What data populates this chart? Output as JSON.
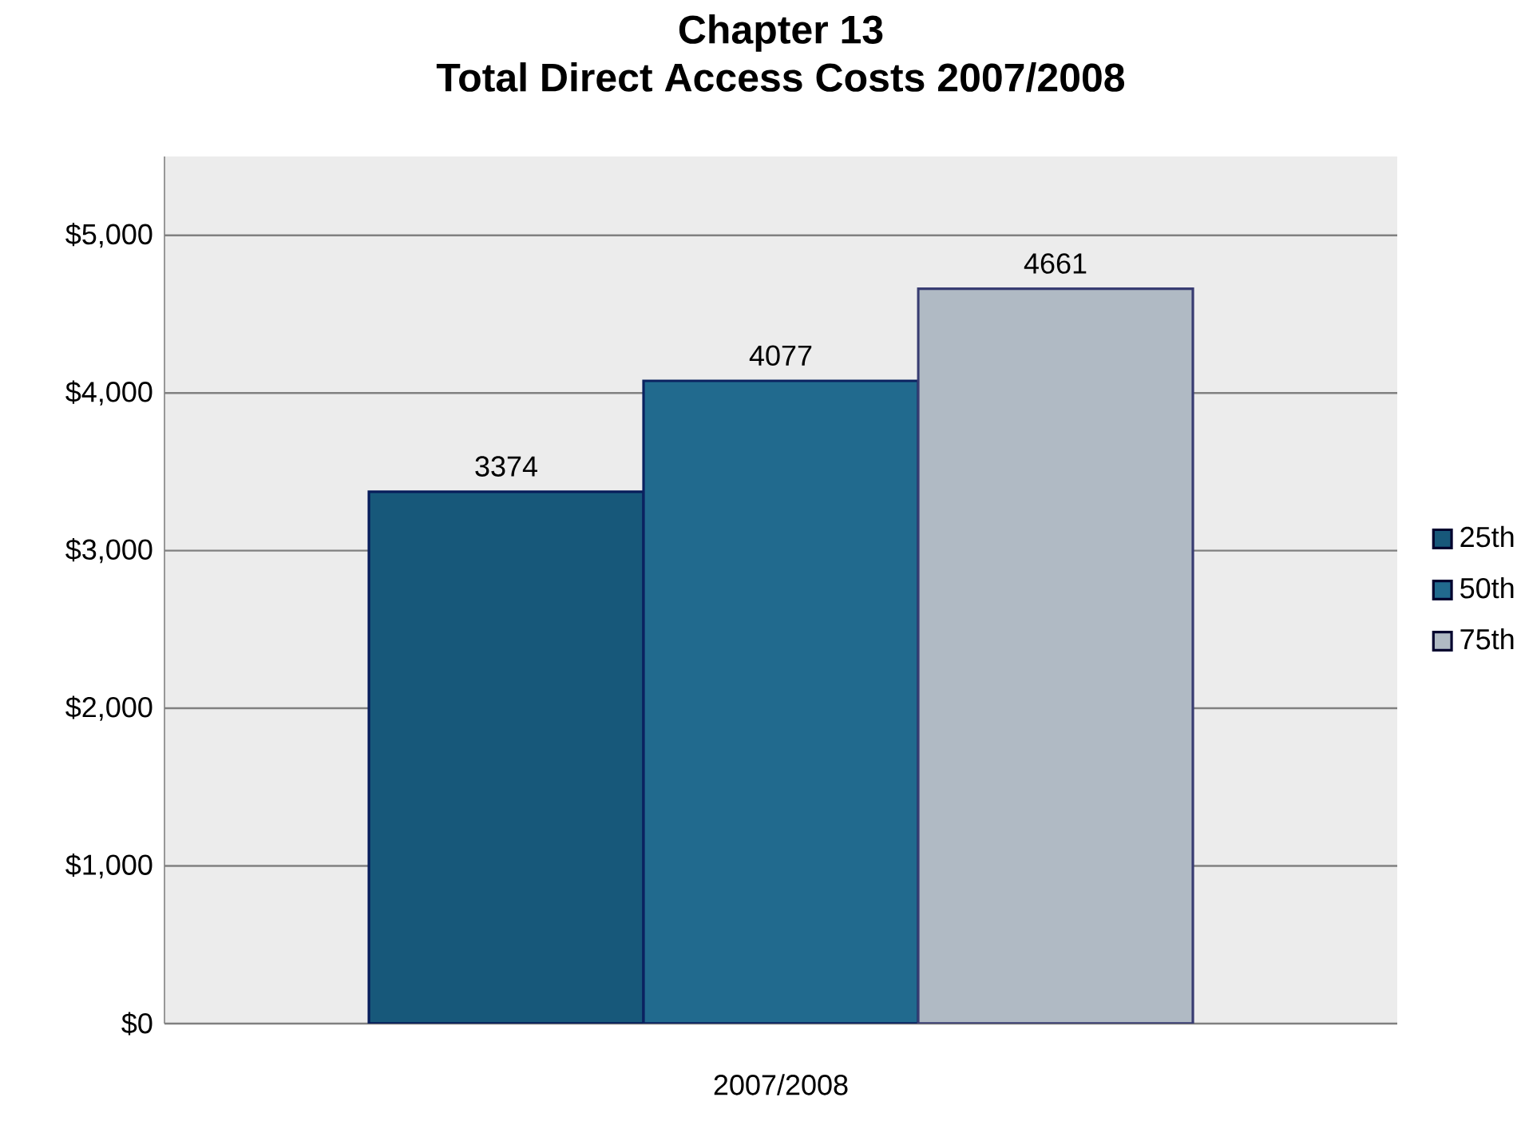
{
  "chart_data": {
    "type": "bar",
    "title": "Chapter 13",
    "subtitle": "Total Direct Access Costs 2007/2008",
    "categories": [
      "2007/2008"
    ],
    "series": [
      {
        "name": "25th",
        "color": "#17587a",
        "values": [
          3374
        ]
      },
      {
        "name": "50th",
        "color": "#216a8e",
        "values": [
          4077
        ]
      },
      {
        "name": "75th",
        "color": "#b0bac4",
        "values": [
          4661
        ]
      }
    ],
    "ylim": [
      0,
      5500
    ],
    "yticks": [
      {
        "value": 0,
        "label": "$0"
      },
      {
        "value": 1000,
        "label": "$1,000"
      },
      {
        "value": 2000,
        "label": "$2,000"
      },
      {
        "value": 3000,
        "label": "$3,000"
      },
      {
        "value": 4000,
        "label": "$4,000"
      },
      {
        "value": 5000,
        "label": "$5,000"
      }
    ],
    "grid": "y",
    "legend": "right",
    "data_labels": true
  }
}
